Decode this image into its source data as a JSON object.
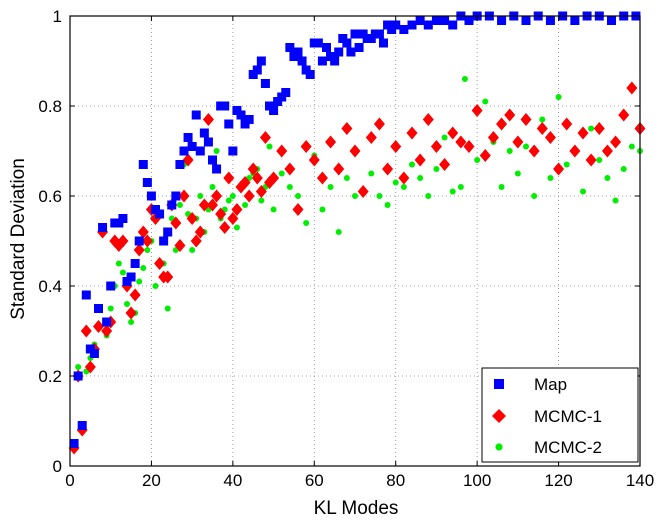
{
  "chart_data": {
    "type": "scatter",
    "title": "",
    "xlabel": "KL Modes",
    "ylabel": "Standard Deviation",
    "xlim": [
      0,
      140
    ],
    "ylim": [
      0,
      1
    ],
    "xticks": [
      "0",
      "20",
      "40",
      "60",
      "80",
      "100",
      "120",
      "140"
    ],
    "yticks": [
      "0",
      "0.2",
      "0.4",
      "0.6",
      "0.8",
      "1"
    ],
    "grid": true,
    "legend_position": "bottom-right",
    "series": [
      {
        "name": "Map",
        "marker": "square",
        "color": "#0000ff",
        "x": [
          1,
          2,
          3,
          4,
          5,
          6,
          7,
          8,
          9,
          10,
          11,
          12,
          13,
          14,
          15,
          16,
          17,
          18,
          19,
          20,
          21,
          22,
          23,
          24,
          25,
          26,
          27,
          28,
          29,
          30,
          31,
          32,
          33,
          34,
          35,
          36,
          37,
          38,
          39,
          40,
          41,
          42,
          43,
          44,
          45,
          46,
          47,
          48,
          49,
          50,
          51,
          52,
          53,
          54,
          55,
          56,
          57,
          58,
          59,
          60,
          61,
          62,
          63,
          64,
          65,
          66,
          67,
          68,
          69,
          70,
          71,
          72,
          73,
          74,
          75,
          76,
          77,
          78,
          79,
          80,
          82,
          84,
          86,
          88,
          90,
          92,
          94,
          96,
          98,
          100,
          103,
          106,
          109,
          112,
          115,
          118,
          121,
          124,
          127,
          130,
          133,
          136,
          139
        ],
        "y": [
          0.05,
          0.2,
          0.09,
          0.38,
          0.26,
          0.25,
          0.35,
          0.53,
          0.32,
          0.4,
          0.54,
          0.54,
          0.55,
          0.41,
          0.42,
          0.45,
          0.5,
          0.67,
          0.63,
          0.6,
          0.57,
          0.56,
          0.5,
          0.52,
          0.58,
          0.6,
          0.67,
          0.7,
          0.73,
          0.71,
          0.78,
          0.7,
          0.74,
          0.72,
          0.68,
          0.66,
          0.8,
          0.8,
          0.76,
          0.7,
          0.79,
          0.78,
          0.76,
          0.77,
          0.87,
          0.88,
          0.9,
          0.85,
          0.8,
          0.79,
          0.81,
          0.82,
          0.83,
          0.93,
          0.91,
          0.92,
          0.9,
          0.88,
          0.87,
          0.94,
          0.94,
          0.9,
          0.93,
          0.91,
          0.9,
          0.92,
          0.95,
          0.94,
          0.92,
          0.96,
          0.93,
          0.96,
          0.95,
          0.95,
          0.96,
          0.96,
          0.94,
          0.98,
          0.97,
          0.98,
          0.97,
          0.98,
          0.99,
          0.98,
          0.99,
          0.99,
          0.98,
          1.0,
          0.99,
          1.0,
          1.0,
          0.99,
          1.0,
          0.99,
          1.0,
          0.99,
          1.0,
          0.99,
          1.0,
          1.0,
          0.99,
          1.0,
          1.0
        ]
      },
      {
        "name": "MCMC-1",
        "marker": "diamond",
        "color": "#ff0000",
        "x": [
          1,
          2,
          3,
          4,
          5,
          6,
          7,
          8,
          9,
          10,
          11,
          12,
          13,
          14,
          15,
          16,
          17,
          18,
          19,
          20,
          21,
          22,
          23,
          24,
          25,
          26,
          27,
          28,
          29,
          30,
          31,
          32,
          33,
          34,
          35,
          36,
          37,
          38,
          39,
          40,
          41,
          42,
          43,
          44,
          45,
          46,
          47,
          48,
          49,
          50,
          52,
          54,
          56,
          58,
          60,
          62,
          64,
          66,
          68,
          70,
          72,
          74,
          76,
          78,
          80,
          82,
          84,
          86,
          88,
          90,
          92,
          94,
          96,
          98,
          100,
          102,
          104,
          106,
          108,
          110,
          112,
          114,
          116,
          118,
          120,
          122,
          124,
          126,
          128,
          130,
          132,
          134,
          136,
          138,
          140
        ],
        "y": [
          0.04,
          0.2,
          0.08,
          0.3,
          0.22,
          0.26,
          0.31,
          0.52,
          0.3,
          0.32,
          0.5,
          0.49,
          0.5,
          0.4,
          0.34,
          0.38,
          0.48,
          0.52,
          0.5,
          0.57,
          0.55,
          0.45,
          0.42,
          0.42,
          0.58,
          0.54,
          0.49,
          0.6,
          0.68,
          0.55,
          0.5,
          0.52,
          0.58,
          0.77,
          0.58,
          0.6,
          0.56,
          0.53,
          0.64,
          0.55,
          0.57,
          0.62,
          0.63,
          0.6,
          0.66,
          0.64,
          0.61,
          0.73,
          0.63,
          0.64,
          0.7,
          0.66,
          0.57,
          0.71,
          0.68,
          0.64,
          0.72,
          0.66,
          0.75,
          0.7,
          0.61,
          0.73,
          0.76,
          0.66,
          0.71,
          0.64,
          0.74,
          0.68,
          0.77,
          0.71,
          0.67,
          0.74,
          0.72,
          0.71,
          0.79,
          0.69,
          0.73,
          0.76,
          0.78,
          0.72,
          0.77,
          0.7,
          0.75,
          0.73,
          0.66,
          0.76,
          0.7,
          0.74,
          0.68,
          0.75,
          0.7,
          0.72,
          0.78,
          0.84,
          0.75
        ]
      },
      {
        "name": "MCMC-2",
        "marker": "circle",
        "color": "#00ee00",
        "x": [
          1,
          2,
          3,
          4,
          5,
          6,
          7,
          8,
          9,
          10,
          11,
          12,
          13,
          14,
          15,
          16,
          17,
          18,
          19,
          20,
          21,
          22,
          23,
          24,
          25,
          26,
          27,
          28,
          29,
          30,
          31,
          32,
          33,
          34,
          35,
          36,
          37,
          38,
          39,
          40,
          41,
          42,
          43,
          44,
          45,
          46,
          47,
          48,
          49,
          50,
          52,
          54,
          56,
          58,
          60,
          62,
          64,
          66,
          68,
          70,
          72,
          74,
          76,
          78,
          80,
          82,
          84,
          86,
          88,
          90,
          92,
          94,
          96,
          97,
          100,
          102,
          104,
          106,
          108,
          110,
          112,
          114,
          116,
          118,
          120,
          122,
          124,
          126,
          128,
          130,
          132,
          134,
          136,
          138,
          140
        ],
        "y": [
          0.05,
          0.22,
          0.09,
          0.21,
          0.24,
          0.27,
          0.31,
          0.53,
          0.29,
          0.35,
          0.4,
          0.45,
          0.43,
          0.36,
          0.32,
          0.34,
          0.41,
          0.44,
          0.48,
          0.5,
          0.4,
          0.56,
          0.45,
          0.35,
          0.55,
          0.48,
          0.58,
          0.67,
          0.56,
          0.48,
          0.55,
          0.6,
          0.52,
          0.57,
          0.62,
          0.7,
          0.55,
          0.57,
          0.59,
          0.6,
          0.53,
          0.62,
          0.58,
          0.64,
          0.65,
          0.66,
          0.59,
          0.62,
          0.71,
          0.57,
          0.65,
          0.62,
          0.6,
          0.54,
          0.69,
          0.57,
          0.62,
          0.52,
          0.64,
          0.6,
          0.61,
          0.65,
          0.6,
          0.58,
          0.63,
          0.62,
          0.67,
          0.64,
          0.6,
          0.66,
          0.73,
          0.61,
          0.62,
          0.86,
          0.68,
          0.81,
          0.72,
          0.62,
          0.7,
          0.65,
          0.71,
          0.6,
          0.77,
          0.64,
          0.82,
          0.67,
          0.7,
          0.61,
          0.75,
          0.68,
          0.64,
          0.59,
          0.66,
          0.71,
          0.7
        ]
      }
    ]
  }
}
